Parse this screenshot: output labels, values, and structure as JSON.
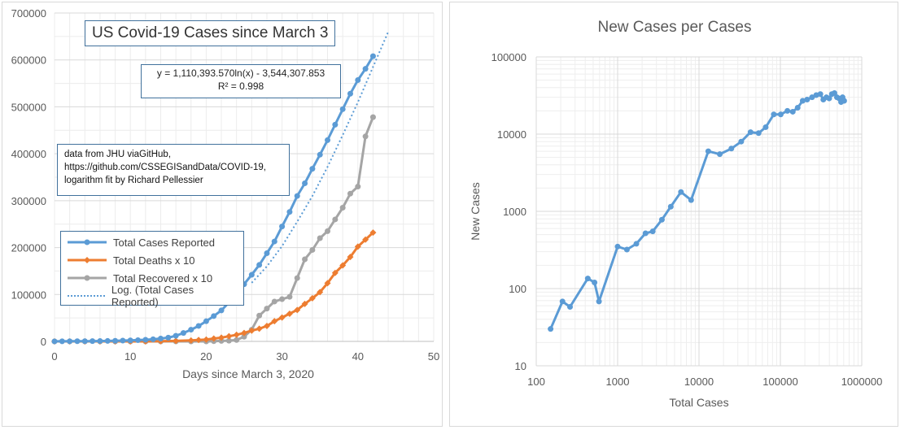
{
  "chart_data": [
    {
      "type": "line",
      "title": "US Covid-19 Cases since March 3",
      "xlabel": "Days since March 3, 2020",
      "ylabel": "",
      "xlim": [
        0,
        50
      ],
      "ylim": [
        0,
        700000
      ],
      "x_ticks": [
        "0",
        "10",
        "20",
        "30",
        "40",
        "50"
      ],
      "y_ticks": [
        "0",
        "100000",
        "200000",
        "300000",
        "400000",
        "500000",
        "600000",
        "700000"
      ],
      "trendline": {
        "equation": "y = 1,110,393.570ln(x) - 3,544,307.853",
        "r2": "R² = 0.998",
        "x": [
          26,
          28,
          30,
          32,
          34,
          36,
          38,
          40,
          42,
          44
        ],
        "values": [
          125000,
          160000,
          203000,
          255000,
          310000,
          372000,
          440000,
          510000,
          585000,
          660000
        ]
      },
      "note_lines": [
        "data from JHU viaGitHub,",
        "https://github.com/CSSEGISandData/COVID-19,",
        "logarithm fit by Richard Pellessier"
      ],
      "legend": [
        "Total Cases Reported",
        "Total Deaths x 10",
        "Total Recovered x 10",
        "Log. (Total Cases Reported)"
      ],
      "series": [
        {
          "name": "Total Cases Reported",
          "color": "#5b9bd5",
          "x": [
            0,
            1,
            2,
            3,
            4,
            5,
            6,
            7,
            8,
            9,
            10,
            11,
            12,
            13,
            14,
            15,
            16,
            17,
            18,
            19,
            20,
            21,
            22,
            23,
            24,
            25,
            26,
            27,
            28,
            29,
            30,
            31,
            32,
            33,
            34,
            35,
            36,
            37,
            38,
            39,
            40,
            41,
            42
          ],
          "values": [
            100,
            200,
            300,
            400,
            500,
            600,
            800,
            1000,
            1300,
            1700,
            2200,
            2700,
            3500,
            4500,
            6000,
            8000,
            12000,
            18000,
            25000,
            33000,
            43000,
            54000,
            66000,
            83000,
            101000,
            122000,
            142000,
            163000,
            188000,
            213000,
            245000,
            276000,
            310000,
            337000,
            368000,
            398000,
            429000,
            462000,
            495000,
            528000,
            557000,
            581000,
            608000
          ]
        },
        {
          "name": "Total Deaths x 10",
          "color": "#ed7d31",
          "x": [
            0,
            2,
            4,
            6,
            8,
            10,
            12,
            14,
            16,
            18,
            19,
            20,
            21,
            22,
            23,
            24,
            25,
            26,
            27,
            28,
            29,
            30,
            31,
            32,
            33,
            34,
            35,
            36,
            37,
            38,
            39,
            40,
            41,
            42
          ],
          "values": [
            0,
            0,
            0,
            0,
            0,
            0,
            0,
            500,
            1000,
            2000,
            3000,
            4000,
            6000,
            8000,
            11000,
            14000,
            18000,
            23000,
            27000,
            33000,
            43000,
            51000,
            59000,
            67000,
            80000,
            92000,
            105000,
            124000,
            146000,
            162000,
            180000,
            202000,
            217000,
            232000
          ]
        },
        {
          "name": "Total Recovered x 10",
          "color": "#a5a5a5",
          "x": [
            0,
            2,
            4,
            6,
            8,
            10,
            12,
            14,
            16,
            18,
            20,
            21,
            22,
            23,
            24,
            25,
            26,
            27,
            28,
            29,
            30,
            31,
            32,
            33,
            34,
            35,
            36,
            37,
            38,
            39,
            40,
            41,
            42
          ],
          "values": [
            0,
            0,
            0,
            0,
            0,
            0,
            0,
            0,
            0,
            0,
            0,
            500,
            1000,
            1500,
            3000,
            10000,
            25000,
            55000,
            70000,
            85000,
            90000,
            95000,
            135000,
            175000,
            195000,
            220000,
            235000,
            260000,
            285000,
            315000,
            330000,
            437000,
            478000
          ]
        }
      ]
    },
    {
      "type": "scatter",
      "title": "New Cases per Cases",
      "xlabel": "Total Cases",
      "ylabel": "New Cases",
      "log_x": true,
      "log_y": true,
      "xlim": [
        100,
        1000000
      ],
      "ylim": [
        10,
        100000
      ],
      "x_ticks": [
        "100",
        "1000",
        "10000",
        "100000",
        "1000000"
      ],
      "y_ticks": [
        "10",
        "100",
        "1000",
        "10000",
        "100000"
      ],
      "series": [
        {
          "name": "",
          "color": "#5b9bd5",
          "x": [
            150,
            210,
            260,
            430,
            520,
            590,
            1000,
            1300,
            1700,
            2200,
            2700,
            3500,
            4500,
            6000,
            8000,
            13000,
            18000,
            25000,
            33000,
            43000,
            54000,
            66000,
            83000,
            101000,
            122000,
            142000,
            163000,
            188000,
            213000,
            245000,
            276000,
            310000,
            337000,
            368000,
            398000,
            429000,
            462000,
            495000,
            528000,
            557000,
            581000,
            608000
          ],
          "values": [
            30,
            68,
            58,
            135,
            120,
            68,
            350,
            320,
            380,
            520,
            550,
            780,
            1150,
            1780,
            1400,
            6000,
            5500,
            6500,
            8000,
            10600,
            10300,
            12300,
            18000,
            18000,
            20000,
            19500,
            22000,
            27000,
            28000,
            30000,
            32000,
            33000,
            28000,
            30000,
            29000,
            33000,
            34000,
            30000,
            29000,
            26000,
            30000,
            27000
          ]
        }
      ]
    }
  ]
}
